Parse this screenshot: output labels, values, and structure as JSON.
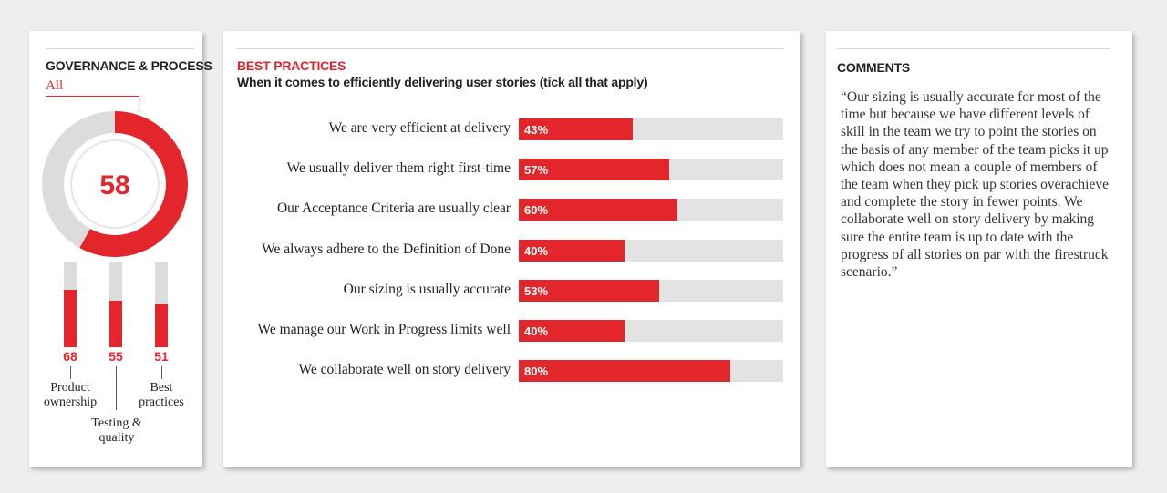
{
  "governance": {
    "title": "GOVERNANCE & PROCESS",
    "filter": "All",
    "score": 58,
    "sub_scores": [
      {
        "value": 68,
        "label": "Product ownership"
      },
      {
        "value": 55,
        "label": "Testing & quality"
      },
      {
        "value": 51,
        "label": "Best practices"
      }
    ]
  },
  "best_practices": {
    "title": "BEST PRACTICES",
    "subtitle": "When it comes to efficiently delivering user stories (tick all that apply)"
  },
  "comments": {
    "title": "COMMENTS",
    "text": "“Our sizing is usually accurate for most of the time but because we have different levels of skill in the team we try to point the stories on the basis of any member of the team picks it up which does not mean a couple of members of the team when they pick up stories overachieve and complete the story in fewer points. We collaborate well on story delivery by making sure the entire team is up to date with the progress of all stories on par with the firestruck scenario.”"
  },
  "colors": {
    "accent": "#e3262b",
    "track": "#e3e3e3"
  },
  "chart_data": [
    {
      "type": "pie",
      "title": "GOVERNANCE & PROCESS",
      "values": [
        58
      ],
      "range": [
        0,
        100
      ],
      "center_label": "58"
    },
    {
      "type": "bar",
      "orientation": "vertical",
      "categories": [
        "Product ownership",
        "Testing & quality",
        "Best practices"
      ],
      "values": [
        68,
        55,
        51
      ],
      "ylim": [
        0,
        100
      ]
    },
    {
      "type": "bar",
      "orientation": "horizontal",
      "title": "BEST PRACTICES",
      "subtitle": "When it comes to efficiently delivering user stories (tick all that apply)",
      "categories": [
        "We are very efficient at delivery",
        "We usually deliver them right first-time",
        "Our Acceptance Criteria are usually clear",
        "We always adhere to the Definition of Done",
        "Our sizing is usually accurate",
        "We manage our Work in Progress limits well",
        "We collaborate well on story delivery"
      ],
      "values": [
        43,
        57,
        60,
        40,
        53,
        40,
        80
      ],
      "value_labels": [
        "43%",
        "57%",
        "60%",
        "40%",
        "53%",
        "40%",
        "80%"
      ],
      "xlim": [
        0,
        100
      ]
    }
  ]
}
